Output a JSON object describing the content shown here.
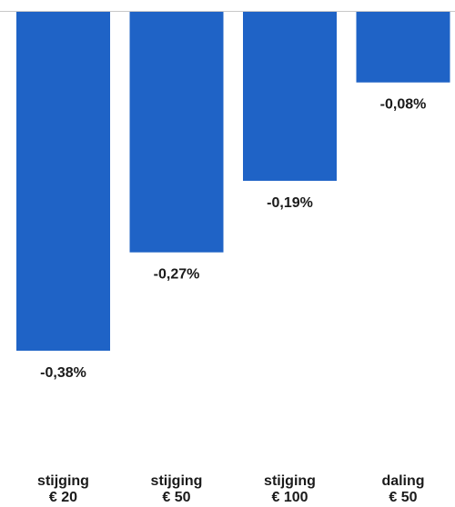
{
  "chart_data": {
    "type": "bar",
    "title": "",
    "xlabel": "",
    "ylabel": "",
    "categories": [
      [
        "stijging",
        "€ 20"
      ],
      [
        "stijging",
        "€ 50"
      ],
      [
        "stijging",
        "€ 100"
      ],
      [
        "daling",
        "€ 50"
      ]
    ],
    "values": [
      -0.38,
      -0.27,
      -0.19,
      -0.08
    ],
    "value_labels": [
      "-0,38%",
      "-0,27%",
      "-0,19%",
      "-0,08%"
    ],
    "bar_color": "#1f63c6",
    "ylim": [
      -0.38,
      0
    ],
    "grid": false,
    "legend": "none"
  }
}
